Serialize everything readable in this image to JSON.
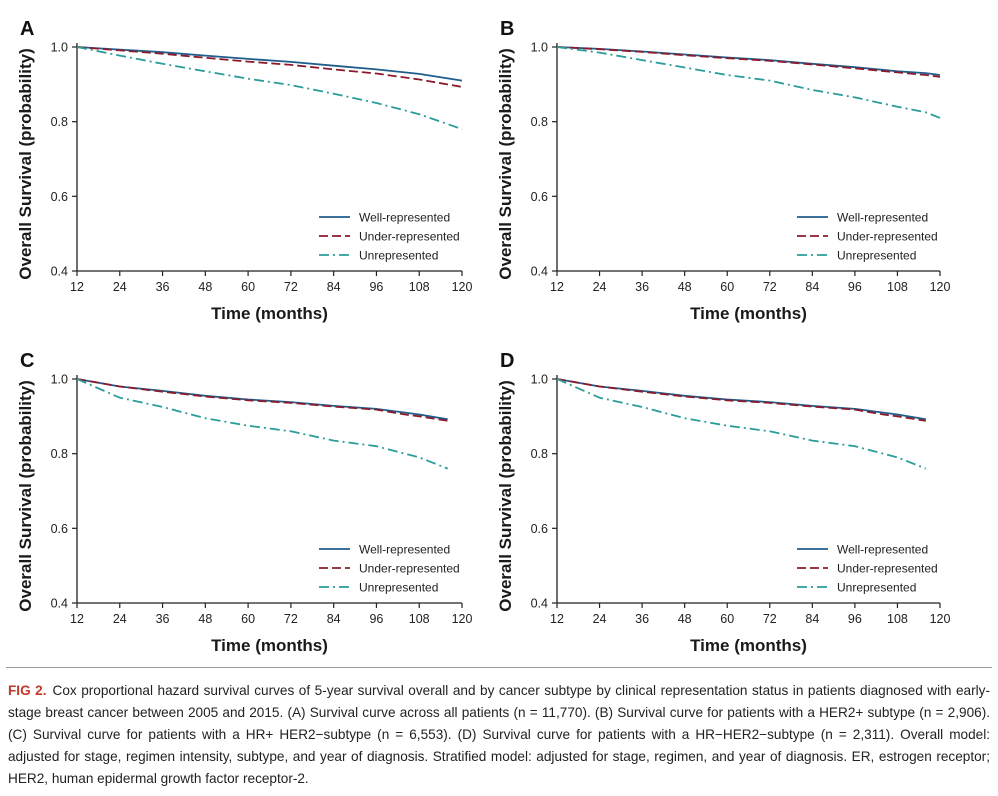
{
  "figure": {
    "caption_label": "FIG 2.",
    "caption_text": "Cox proportional hazard survival curves of 5-year survival overall and by cancer subtype by clinical representation status in patients diagnosed with early-stage breast cancer between 2005 and 2015. (A) Survival curve across all patients (n = 11,770). (B) Survival curve for patients with a HER2+ subtype (n = 2,906). (C) Survival curve for patients with a HR+ HER2−subtype (n = 6,553). (D) Survival curve for patients with a HR−HER2−subtype (n = 2,311). Overall model: adjusted for stage, regimen intensity, subtype, and year of diagnosis. Stratified model: adjusted for stage, regimen, and year of diagnosis. ER, estrogen receptor; HER2, human epidermal growth factor receptor-2."
  },
  "colors": {
    "well": "#1f5d8c",
    "under": "#8b1a2b",
    "unrep": "#2a9d9a"
  },
  "chart_data": [
    {
      "type": "line",
      "panel": "A",
      "xlabel": "Time (months)",
      "ylabel": "Overall Survival (probability)",
      "xlim": [
        12,
        120
      ],
      "ylim": [
        0.4,
        1.0
      ],
      "xticks": [
        12,
        24,
        36,
        48,
        60,
        72,
        84,
        96,
        108,
        120
      ],
      "yticks": [
        0.4,
        0.6,
        0.8,
        1.0
      ],
      "ytick_labels": [
        "0.4",
        "0.6",
        "0.8",
        "1.0"
      ],
      "legend_position": "bottom-right",
      "x": [
        12,
        24,
        36,
        48,
        60,
        72,
        84,
        96,
        108,
        120
      ],
      "series": [
        {
          "name": "Well-represented",
          "style": "solid",
          "values": [
            1.0,
            0.993,
            0.986,
            0.977,
            0.968,
            0.96,
            0.95,
            0.94,
            0.928,
            0.91
          ]
        },
        {
          "name": "Under-represented",
          "style": "dashed",
          "values": [
            1.0,
            0.991,
            0.982,
            0.971,
            0.961,
            0.952,
            0.94,
            0.929,
            0.913,
            0.893
          ]
        },
        {
          "name": "Unrepresented",
          "style": "dashdot",
          "values": [
            1.0,
            0.977,
            0.955,
            0.935,
            0.915,
            0.898,
            0.875,
            0.85,
            0.82,
            0.78
          ]
        }
      ]
    },
    {
      "type": "line",
      "panel": "B",
      "xlabel": "Time (months)",
      "ylabel": "Overall Survival (probability)",
      "xlim": [
        12,
        120
      ],
      "ylim": [
        0.4,
        1.0
      ],
      "xticks": [
        12,
        24,
        36,
        48,
        60,
        72,
        84,
        96,
        108,
        120
      ],
      "yticks": [
        0.4,
        0.6,
        0.8,
        1.0
      ],
      "ytick_labels": [
        "0.4",
        "0.6",
        "0.8",
        "1.0"
      ],
      "legend_position": "bottom-right",
      "x": [
        12,
        24,
        36,
        48,
        60,
        72,
        84,
        96,
        108,
        116,
        120
      ],
      "series": [
        {
          "name": "Well-represented",
          "style": "solid",
          "values": [
            1.0,
            0.995,
            0.988,
            0.98,
            0.972,
            0.965,
            0.955,
            0.946,
            0.935,
            0.93,
            0.925
          ]
        },
        {
          "name": "Under-represented",
          "style": "dashed",
          "values": [
            1.0,
            0.994,
            0.987,
            0.978,
            0.97,
            0.963,
            0.953,
            0.943,
            0.932,
            0.925,
            0.92
          ]
        },
        {
          "name": "Unrepresented",
          "style": "dashdot",
          "values": [
            1.0,
            0.985,
            0.965,
            0.945,
            0.925,
            0.91,
            0.885,
            0.865,
            0.84,
            0.825,
            0.81
          ]
        }
      ]
    },
    {
      "type": "line",
      "panel": "C",
      "xlabel": "Time (months)",
      "ylabel": "Overall Survival (probability)",
      "xlim": [
        12,
        120
      ],
      "ylim": [
        0.4,
        1.0
      ],
      "xticks": [
        12,
        24,
        36,
        48,
        60,
        72,
        84,
        96,
        108,
        120
      ],
      "yticks": [
        0.4,
        0.6,
        0.8,
        1.0
      ],
      "ytick_labels": [
        "0.4",
        "0.6",
        "0.8",
        "1.0"
      ],
      "legend_position": "bottom-right",
      "x": [
        12,
        24,
        36,
        48,
        60,
        72,
        84,
        96,
        104,
        108,
        116
      ],
      "series": [
        {
          "name": "Well-represented",
          "style": "solid",
          "values": [
            1.0,
            0.98,
            0.968,
            0.955,
            0.945,
            0.938,
            0.928,
            0.92,
            0.91,
            0.905,
            0.892
          ]
        },
        {
          "name": "Under-represented",
          "style": "dashed",
          "values": [
            1.0,
            0.98,
            0.966,
            0.953,
            0.943,
            0.936,
            0.926,
            0.918,
            0.905,
            0.9,
            0.888
          ]
        },
        {
          "name": "Unrepresented",
          "style": "dashdot",
          "values": [
            1.0,
            0.95,
            0.925,
            0.895,
            0.875,
            0.86,
            0.835,
            0.82,
            0.8,
            0.79,
            0.76
          ]
        }
      ]
    },
    {
      "type": "line",
      "panel": "D",
      "xlabel": "Time (months)",
      "ylabel": "Overall Survival (probability)",
      "xlim": [
        12,
        120
      ],
      "ylim": [
        0.4,
        1.0
      ],
      "xticks": [
        12,
        24,
        36,
        48,
        60,
        72,
        84,
        96,
        108,
        120
      ],
      "yticks": [
        0.4,
        0.6,
        0.8,
        1.0
      ],
      "ytick_labels": [
        "0.4",
        "0.6",
        "0.8",
        "1.0"
      ],
      "legend_position": "bottom-right",
      "x": [
        12,
        24,
        36,
        48,
        60,
        72,
        84,
        96,
        104,
        108,
        116
      ],
      "series": [
        {
          "name": "Well-represented",
          "style": "solid",
          "values": [
            1.0,
            0.98,
            0.968,
            0.955,
            0.945,
            0.938,
            0.928,
            0.92,
            0.91,
            0.905,
            0.892
          ]
        },
        {
          "name": "Under-represented",
          "style": "dashed",
          "values": [
            1.0,
            0.98,
            0.966,
            0.953,
            0.943,
            0.936,
            0.926,
            0.918,
            0.905,
            0.9,
            0.888
          ]
        },
        {
          "name": "Unrepresented",
          "style": "dashdot",
          "values": [
            1.0,
            0.95,
            0.925,
            0.895,
            0.875,
            0.86,
            0.835,
            0.82,
            0.8,
            0.79,
            0.76
          ]
        }
      ]
    }
  ]
}
